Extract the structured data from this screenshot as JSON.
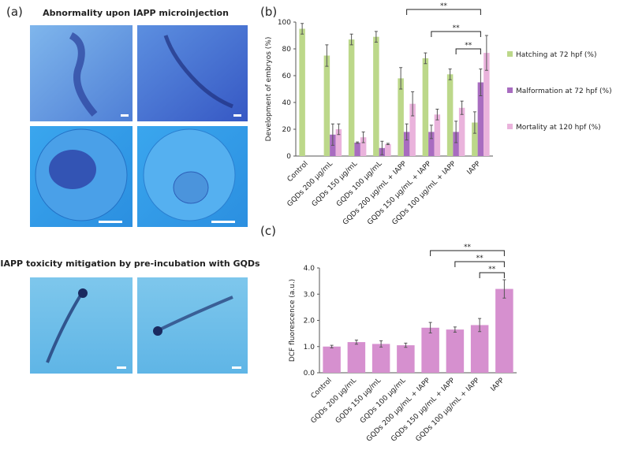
{
  "panel_a": {
    "label": "(a)",
    "title_top": "Abnormality upon IAPP microinjection",
    "title_bottom": "IAPP toxicity mitigation by pre-incubation with GQDs"
  },
  "chart_data": [
    {
      "type": "bar",
      "panel": "(b)",
      "y_label": "Development of embryos (%)",
      "categories": [
        "Control",
        "GQDs 200 μg/mL",
        "GQDs 150 μg/mL",
        "GQDs 100 μg/mL",
        "GQDs 200 μg/mL + IAPP",
        "GQDs 150 μg/mL + IAPP",
        "GQDs 100 μg/mL + IAPP",
        "IAPP"
      ],
      "series": [
        {
          "name": "Hatching at 72 hpf (%)",
          "color": "#bcd88a",
          "values": [
            95,
            75,
            87,
            89,
            58,
            73,
            61,
            25
          ],
          "errors": [
            4,
            8,
            4,
            4,
            8,
            4,
            4,
            8
          ]
        },
        {
          "name": "Malformation at 72 hpf (%)",
          "color": "#a86cc0",
          "values": [
            0,
            16,
            10,
            6,
            18,
            18,
            18,
            55
          ],
          "errors": [
            0,
            8,
            0.5,
            5,
            6,
            5,
            8,
            10
          ]
        },
        {
          "name": "Mortality at 120 hpf (%)",
          "color": "#eab3dc",
          "values": [
            0,
            20,
            14,
            9,
            39,
            31,
            36,
            77
          ],
          "errors": [
            0,
            4,
            4,
            0.5,
            9,
            4,
            5,
            13
          ]
        }
      ],
      "ylim": [
        0,
        100
      ],
      "yticks": [
        0,
        20,
        40,
        60,
        80,
        100
      ],
      "legend": "right",
      "annotations": [
        "**",
        "**",
        "**"
      ]
    },
    {
      "type": "bar",
      "panel": "(c)",
      "y_label": "DCF fluorescence (a.u.)",
      "categories": [
        "Control",
        "GQDs 200 μg/mL",
        "GQDs 150 μg/mL",
        "GQDs 100 μg/mL",
        "GQDs 200 μg/mL + IAPP",
        "GQDs 150 μg/mL + IAPP",
        "GQDs 100 μg/mL + IAPP",
        "IAPP"
      ],
      "series": [
        {
          "color": "#d690cf",
          "values": [
            1.0,
            1.17,
            1.1,
            1.05,
            1.72,
            1.65,
            1.82,
            3.2
          ],
          "errors": [
            0.05,
            0.08,
            0.12,
            0.08,
            0.2,
            0.1,
            0.25,
            0.35
          ]
        }
      ],
      "ylim": [
        0,
        4
      ],
      "yticks": [
        {
          "value": 0,
          "label": "0.0"
        },
        {
          "value": 1,
          "label": "1.0"
        },
        {
          "value": 2,
          "label": "2.0"
        },
        {
          "value": 3,
          "label": "3.0"
        },
        {
          "value": 4,
          "label": "4.0"
        }
      ],
      "annotations": [
        "**",
        "**",
        "**"
      ]
    }
  ]
}
